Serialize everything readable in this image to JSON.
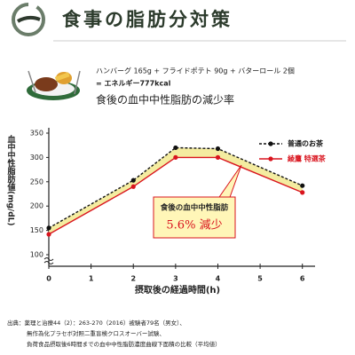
{
  "header": {
    "title": "食事の脂肪分対策"
  },
  "meal": {
    "line1": "ハンバーグ 165g + フライドポテト 90g + バターロール 2個",
    "line2": "= エネルギー777kcal"
  },
  "chart_data": {
    "type": "line",
    "title": "食後の血中中性脂肪の減少率",
    "x_label": "摂取後の経過時間(h)",
    "y_label": "血中中性脂肪値(mg/dL)",
    "x": [
      0,
      2,
      3,
      4,
      6
    ],
    "series": [
      {
        "name": "普通のお茶",
        "color": "#111111",
        "values": [
          155,
          253,
          320,
          318,
          242
        ]
      },
      {
        "name": "綾鷹 特選茶",
        "color": "#d9141e",
        "values": [
          142,
          240,
          300,
          300,
          228
        ]
      }
    ],
    "xlim": [
      0,
      6.3
    ],
    "xticks": [
      0,
      1,
      2,
      3,
      4,
      5,
      6
    ],
    "ylim": [
      100,
      350
    ],
    "yticks": [
      100,
      150,
      200,
      250,
      300,
      350
    ],
    "annotation": {
      "title": "食後の血中中性脂肪",
      "text": "5.6% 減少"
    },
    "band_color": "#f4eca0"
  },
  "source": {
    "line1": "出典：薬理と治療44（2）：263-270（2016）被験者79名（男女）、",
    "line2": "無作為化プラセボ対照二重盲検クロスオーバー試験、",
    "line3": "負荷食品摂取後6時間までの血中中性脂肪濃度曲線下面積の比較（平均値）"
  }
}
